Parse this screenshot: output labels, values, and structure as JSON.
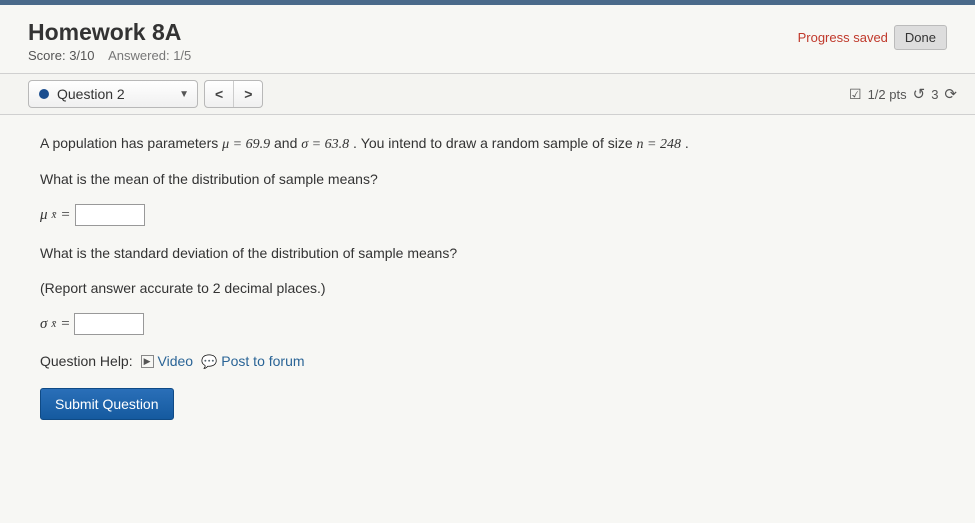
{
  "header": {
    "title": "Homework 8A",
    "score_label": "Score:",
    "score_value": "3/10",
    "answered_label": "Answered:",
    "answered_value": "1/5",
    "progress_saved": "Progress saved",
    "done_label": "Done"
  },
  "qbar": {
    "question_label": "Question 2",
    "prev": "<",
    "next": ">",
    "pts_text": "1/2 pts",
    "attempts_text": "3"
  },
  "problem": {
    "intro_pre": "A population has parameters ",
    "mu_eq": "μ = 69.9",
    "intro_mid": " and ",
    "sigma_eq": "σ = 63.8",
    "intro_post": ". You intend to draw a random sample of size ",
    "n_eq": "n = 248",
    "intro_end": ".",
    "q1": "What is the mean of the distribution of sample means?",
    "mu_xbar": "μ",
    "sub1": "x̄",
    "equals": "=",
    "q2a": "What is the standard deviation of the distribution of sample means?",
    "q2b": "(Report answer accurate to 2 decimal places.)",
    "sigma_xbar": "σ",
    "sub2": "x̄"
  },
  "help": {
    "label": "Question Help:",
    "video": "Video",
    "forum": "Post to forum"
  },
  "submit": {
    "label": "Submit Question"
  }
}
